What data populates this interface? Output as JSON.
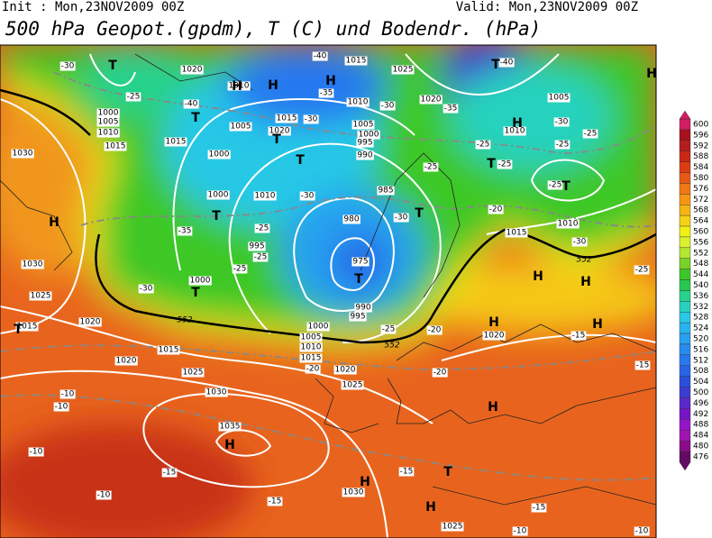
{
  "header": {
    "init": "Init : Mon,23NOV2009 00Z",
    "valid": "Valid: Mon,23NOV2009 00Z",
    "title": "500 hPa Geopot.(gpdm), T (C) und Bodendr. (hPa)"
  },
  "colorbar": {
    "levels": [
      600,
      596,
      592,
      588,
      584,
      580,
      576,
      572,
      568,
      564,
      560,
      556,
      552,
      548,
      544,
      540,
      536,
      532,
      528,
      524,
      520,
      516,
      512,
      508,
      504,
      500,
      496,
      492,
      488,
      484,
      480,
      476
    ],
    "colors": [
      "#d01e64",
      "#a8101e",
      "#b41e1e",
      "#c82814",
      "#dc3c14",
      "#e65a14",
      "#f07814",
      "#f59614",
      "#f5b414",
      "#f5d214",
      "#f0f014",
      "#dcf032",
      "#b4e632",
      "#78d228",
      "#3cc828",
      "#28c850",
      "#28d28c",
      "#28d2be",
      "#28c8e6",
      "#28b4f0",
      "#28a0f0",
      "#288cf0",
      "#2878f0",
      "#2864e6",
      "#2850dc",
      "#3c3cd2",
      "#5a28c8",
      "#7814c8",
      "#9614c8",
      "#a014b4",
      "#8c0a8c",
      "#640a64"
    ]
  },
  "map": {
    "pressure_labels": [
      "1020",
      "1015",
      "1025",
      "1010",
      "1000",
      "1005",
      "1010",
      "1015",
      "1030",
      "1015",
      "1005",
      "1020",
      "1015",
      "1010",
      "1005",
      "1000",
      "995",
      "990",
      "985",
      "1000",
      "1000",
      "1010",
      "980",
      "975",
      "990",
      "995",
      "995",
      "1000",
      "1030",
      "1025",
      "1020",
      "1015",
      "1000",
      "1005",
      "1010",
      "1015",
      "1020",
      "1025",
      "1030",
      "1035",
      "1025",
      "1020",
      "1015",
      "1020",
      "1005",
      "1010",
      "1010",
      "1015",
      "1030",
      "1025",
      "1020"
    ],
    "temperature_labels": [
      "-30",
      "-25",
      "-40",
      "-35",
      "-30",
      "-30",
      "-40",
      "-40",
      "-35",
      "-30",
      "-25",
      "-25",
      "-25",
      "-25",
      "-25",
      "-20",
      "-25",
      "-30",
      "-25",
      "-30",
      "-30",
      "-35",
      "-25",
      "-25",
      "-25",
      "-30",
      "-25",
      "-20",
      "-15",
      "-20",
      "-20",
      "-15",
      "-15",
      "-15",
      "-10",
      "-10",
      "-10",
      "-10",
      "-15",
      "-10",
      "-10",
      "-15"
    ],
    "thickness_labels": [
      "552",
      "552",
      "552"
    ],
    "centers": [
      "H",
      "H",
      "H",
      "T",
      "T",
      "T",
      "T",
      "T",
      "T",
      "T",
      "T",
      "H",
      "T",
      "H",
      "T",
      "T",
      "H",
      "H",
      "H",
      "H",
      "H",
      "H",
      "H",
      "H",
      "T",
      "H",
      "T"
    ]
  }
}
